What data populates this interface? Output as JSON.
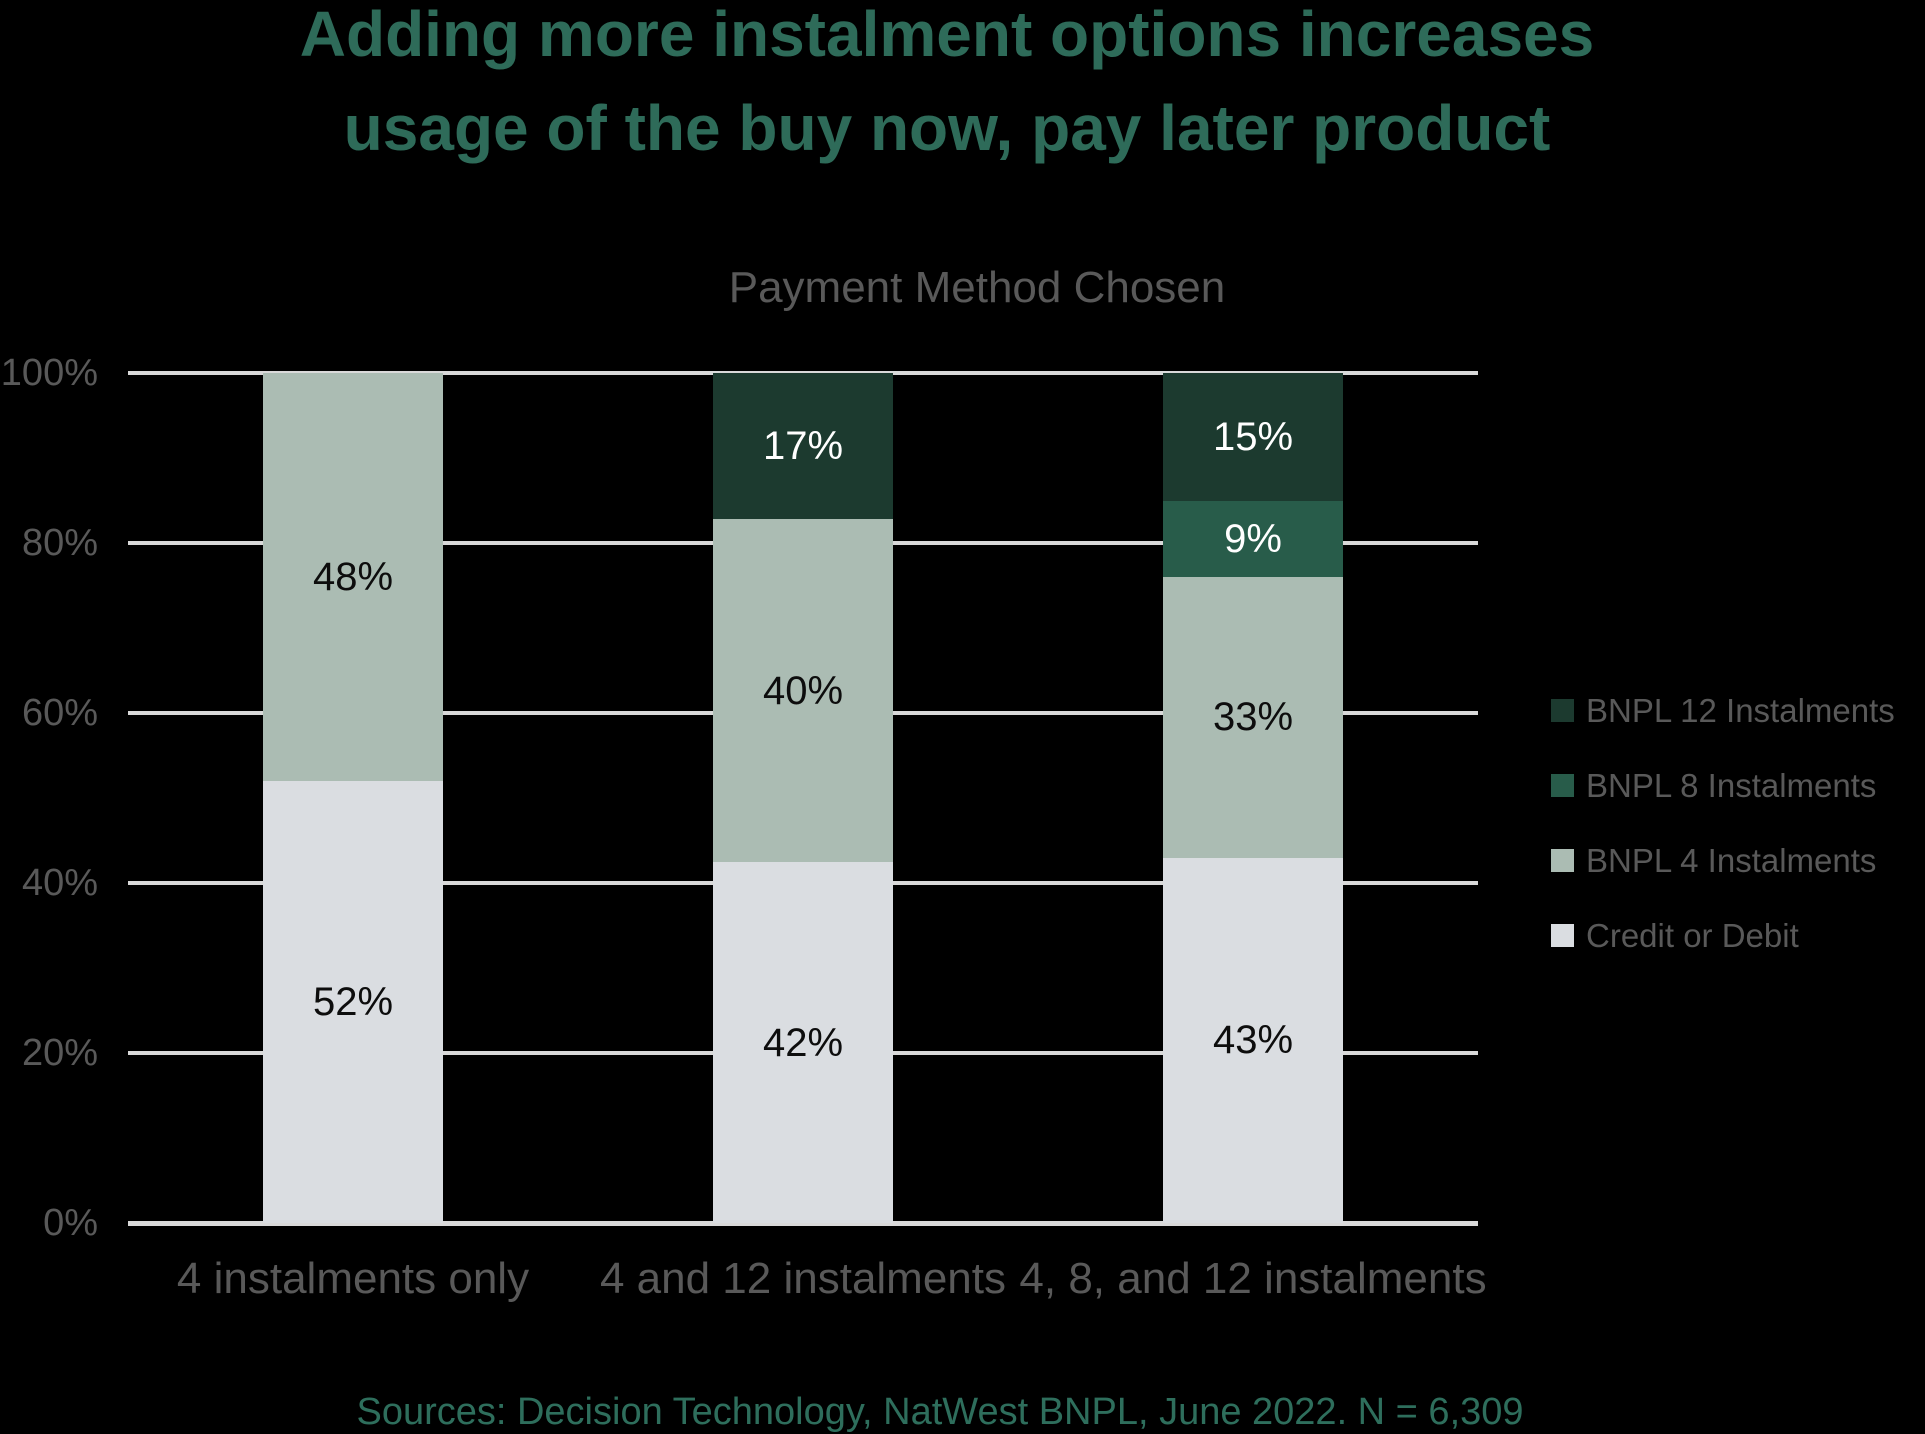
{
  "page": {
    "background": "#000000"
  },
  "title": {
    "line1": "Adding more instalment options increases",
    "line2": "usage of the buy now, pay later product",
    "color": "#2E6B59"
  },
  "chart_data": {
    "type": "bar",
    "stacked": true,
    "title": "Payment Method Chosen",
    "categories": [
      "4 instalments only",
      "4 and 12 instalments",
      "4, 8, and 12 instalments"
    ],
    "series": [
      {
        "name": "Credit or Debit",
        "color": "#DADDE1",
        "label_color": "#0D0D0D",
        "values": [
          52,
          42,
          43
        ]
      },
      {
        "name": "BNPL 4 Instalments",
        "color": "#ABBCB3",
        "label_color": "#0D0D0D",
        "values": [
          48,
          40,
          33
        ]
      },
      {
        "name": "BNPL 8 Instalments",
        "color": "#285C4A",
        "label_color": "#FFFFFF",
        "values": [
          0,
          0,
          9
        ]
      },
      {
        "name": "BNPL 12 Instalments",
        "color": "#1C3A2F",
        "label_color": "#FFFFFF",
        "values": [
          0,
          17,
          15
        ]
      }
    ],
    "value_suffix": "%",
    "ylim": [
      0,
      100
    ],
    "yticks": [
      0,
      20,
      40,
      60,
      80,
      100
    ],
    "ytick_labels": [
      "0%",
      "20%",
      "40%",
      "60%",
      "80%",
      "100%"
    ],
    "grid": true,
    "gridline_color": "#D9D9D9",
    "axis_text_color": "#595959",
    "legend_position": "right",
    "legend_order": [
      3,
      2,
      1,
      0
    ]
  },
  "source": {
    "text": "Sources: Decision Technology, NatWest BNPL, June 2022. N = 6,309",
    "color": "#2E6E5C"
  }
}
